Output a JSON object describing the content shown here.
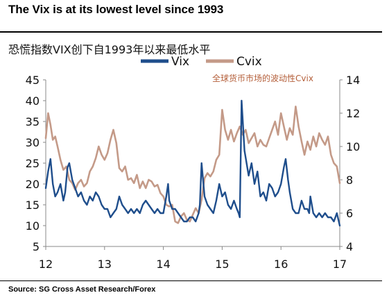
{
  "header": {
    "title": "The Vix is at its lowest level since 1993",
    "subtitle": "恐慌指数VIX创下自1993年以来最低水平",
    "annotation": "全球货币市场的波动性Cvix",
    "source": "Source: SG Cross Asset Research/Forex"
  },
  "colors": {
    "vix": "#1f4e8c",
    "cvix": "#c49a88",
    "annotation": "#b45f3a",
    "axis": "#888888"
  },
  "chart_data": {
    "type": "line",
    "x_ticks": [
      "12",
      "13",
      "14",
      "15",
      "16",
      "17"
    ],
    "xlim": [
      12,
      17
    ],
    "left_axis": {
      "ylim": [
        5,
        45
      ],
      "ticks": [
        "5",
        "10",
        "15",
        "20",
        "25",
        "30",
        "35",
        "40",
        "45"
      ]
    },
    "right_axis": {
      "ylim": [
        4,
        14
      ],
      "ticks": [
        "4",
        "6",
        "8",
        "10",
        "12",
        "14"
      ]
    },
    "legend": {
      "placement": "top",
      "entries": [
        "Vix",
        "Cvix"
      ]
    },
    "grid": false,
    "series": [
      {
        "name": "Vix",
        "axis": "left",
        "x": [
          12.0,
          12.04,
          12.08,
          12.12,
          12.16,
          12.2,
          12.25,
          12.3,
          12.33,
          12.37,
          12.4,
          12.45,
          12.5,
          12.55,
          12.6,
          12.65,
          12.7,
          12.75,
          12.8,
          12.85,
          12.9,
          12.95,
          13.0,
          13.05,
          13.1,
          13.15,
          13.2,
          13.25,
          13.3,
          13.35,
          13.4,
          13.45,
          13.5,
          13.55,
          13.6,
          13.65,
          13.7,
          13.75,
          13.8,
          13.85,
          13.9,
          13.95,
          14.0,
          14.05,
          14.08,
          14.1,
          14.15,
          14.2,
          14.25,
          14.3,
          14.35,
          14.4,
          14.45,
          14.5,
          14.55,
          14.6,
          14.62,
          14.65,
          14.7,
          14.75,
          14.8,
          14.85,
          14.9,
          14.95,
          15.0,
          15.05,
          15.1,
          15.15,
          15.2,
          15.25,
          15.28,
          15.3,
          15.33,
          15.38,
          15.45,
          15.5,
          15.55,
          15.6,
          15.65,
          15.7,
          15.75,
          15.8,
          15.85,
          15.9,
          15.95,
          16.0,
          16.05,
          16.08,
          16.12,
          16.15,
          16.2,
          16.25,
          16.3,
          16.35,
          16.4,
          16.45,
          16.48,
          16.5,
          16.55,
          16.6,
          16.65,
          16.7,
          16.75,
          16.8,
          16.85,
          16.9,
          16.95,
          17.0
        ],
        "values": [
          19,
          23,
          26,
          20,
          17,
          18,
          20,
          16,
          18,
          24,
          25,
          21,
          19,
          17,
          18,
          16,
          15,
          17,
          16,
          18,
          17,
          15,
          14,
          14,
          12,
          13,
          14,
          17,
          15,
          14,
          13,
          14,
          13,
          14,
          13,
          15,
          16,
          15,
          14,
          13,
          14,
          13,
          13,
          17,
          20,
          16,
          14,
          14,
          13,
          12,
          11,
          11,
          12,
          12,
          11,
          13,
          15,
          25,
          17,
          15,
          14,
          13,
          16,
          20,
          17,
          18,
          15,
          14,
          16,
          14,
          13,
          12,
          40,
          28,
          22,
          25,
          20,
          23,
          17,
          18,
          16,
          20,
          19,
          17,
          18,
          20,
          24,
          26,
          21,
          18,
          14,
          13,
          13,
          16,
          14,
          14,
          13,
          17,
          13,
          12,
          13,
          12,
          13,
          12,
          12,
          11,
          13,
          10
        ]
      },
      {
        "name": "Cvix",
        "axis": "right",
        "x": [
          12.0,
          12.04,
          12.08,
          12.12,
          12.16,
          12.2,
          12.25,
          12.3,
          12.35,
          12.4,
          12.45,
          12.5,
          12.55,
          12.6,
          12.65,
          12.7,
          12.75,
          12.8,
          12.85,
          12.9,
          12.95,
          13.0,
          13.05,
          13.1,
          13.15,
          13.2,
          13.25,
          13.3,
          13.35,
          13.4,
          13.45,
          13.5,
          13.55,
          13.6,
          13.65,
          13.7,
          13.75,
          13.8,
          13.85,
          13.9,
          13.95,
          14.0,
          14.05,
          14.1,
          14.15,
          14.2,
          14.25,
          14.3,
          14.35,
          14.4,
          14.45,
          14.5,
          14.55,
          14.6,
          14.65,
          14.7,
          14.75,
          14.8,
          14.85,
          14.9,
          14.95,
          15.0,
          15.05,
          15.1,
          15.15,
          15.2,
          15.25,
          15.3,
          15.35,
          15.4,
          15.45,
          15.5,
          15.55,
          15.6,
          15.65,
          15.7,
          15.75,
          15.8,
          15.85,
          15.9,
          15.95,
          16.0,
          16.05,
          16.1,
          16.15,
          16.2,
          16.25,
          16.3,
          16.35,
          16.4,
          16.45,
          16.5,
          16.55,
          16.6,
          16.65,
          16.7,
          16.75,
          16.8,
          16.85,
          16.9,
          16.95,
          17.0
        ],
        "values": [
          10.5,
          12.0,
          11.3,
          10.4,
          10.6,
          10.0,
          9.2,
          8.6,
          8.8,
          8.0,
          7.8,
          7.4,
          7.8,
          8.0,
          7.6,
          7.8,
          8.5,
          8.8,
          9.3,
          10.0,
          9.5,
          9.2,
          9.6,
          10.4,
          11.0,
          10.2,
          8.7,
          8.5,
          8.8,
          8.0,
          8.1,
          7.8,
          8.3,
          7.5,
          7.9,
          7.5,
          8.0,
          7.9,
          7.6,
          7.7,
          7.2,
          7.0,
          6.5,
          6.4,
          6.5,
          5.5,
          5.4,
          5.8,
          6.0,
          5.6,
          5.5,
          5.9,
          6.3,
          6.0,
          6.8,
          8.1,
          8.4,
          8.2,
          8.5,
          9.2,
          9.5,
          12.2,
          11.0,
          10.4,
          11.0,
          10.3,
          10.8,
          11.2,
          10.7,
          11.0,
          10.2,
          10.5,
          10.8,
          10.0,
          10.4,
          10.1,
          10.0,
          10.5,
          11.0,
          11.5,
          10.7,
          12.0,
          11.2,
          10.4,
          11.1,
          10.7,
          12.4,
          11.2,
          10.3,
          9.5,
          10.3,
          9.8,
          10.6,
          10.0,
          10.8,
          10.4,
          10.1,
          10.6,
          9.5,
          9.0,
          8.8,
          7.8
        ]
      }
    ]
  }
}
